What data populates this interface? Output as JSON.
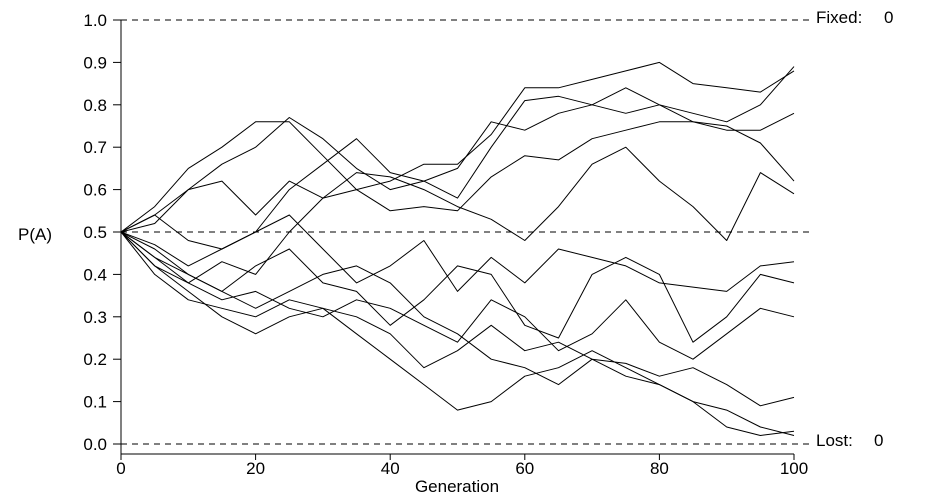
{
  "chart_data": {
    "type": "line",
    "title": "",
    "xlabel": "Generation",
    "ylabel": "P(A)",
    "xlim": [
      0,
      100
    ],
    "ylim": [
      0,
      1
    ],
    "x_ticks": [
      0,
      20,
      40,
      60,
      80,
      100
    ],
    "y_ticks": [
      0.0,
      0.1,
      0.2,
      0.3,
      0.4,
      0.5,
      0.6,
      0.7,
      0.8,
      0.9,
      1.0
    ],
    "x_tick_labels": [
      "0",
      "20",
      "40",
      "60",
      "80",
      "100"
    ],
    "y_tick_labels": [
      "0.0",
      "0.1",
      "0.2",
      "0.3",
      "0.4",
      "0.5",
      "0.6",
      "0.7",
      "0.8",
      "0.9",
      "1.0"
    ],
    "reference_lines": [
      0.0,
      0.5,
      1.0
    ],
    "grid": false,
    "annotations": {
      "fixed_label": "Fixed:",
      "fixed_count": "0",
      "lost_label": "Lost:",
      "lost_count": "0"
    },
    "series": [
      {
        "x": [
          0,
          5,
          10,
          15,
          20,
          25,
          30,
          35,
          40,
          45,
          50,
          55,
          60,
          65,
          70,
          75,
          80,
          85,
          90,
          95,
          100
        ],
        "values": [
          0.5,
          0.56,
          0.65,
          0.7,
          0.76,
          0.76,
          0.68,
          0.6,
          0.62,
          0.66,
          0.66,
          0.73,
          0.84,
          0.84,
          0.86,
          0.88,
          0.9,
          0.85,
          0.84,
          0.83,
          0.88
        ]
      },
      {
        "x": [
          0,
          5,
          10,
          15,
          20,
          25,
          30,
          35,
          40,
          45,
          50,
          55,
          60,
          65,
          70,
          75,
          80,
          85,
          90,
          95,
          100
        ],
        "values": [
          0.5,
          0.54,
          0.6,
          0.66,
          0.7,
          0.77,
          0.72,
          0.65,
          0.6,
          0.62,
          0.58,
          0.7,
          0.81,
          0.82,
          0.8,
          0.84,
          0.8,
          0.78,
          0.76,
          0.8,
          0.89
        ]
      },
      {
        "x": [
          0,
          5,
          10,
          15,
          20,
          25,
          30,
          35,
          40,
          45,
          50,
          55,
          60,
          65,
          70,
          75,
          80,
          85,
          90,
          95,
          100
        ],
        "values": [
          0.5,
          0.47,
          0.42,
          0.46,
          0.5,
          0.6,
          0.66,
          0.72,
          0.64,
          0.62,
          0.65,
          0.76,
          0.74,
          0.78,
          0.8,
          0.78,
          0.8,
          0.76,
          0.74,
          0.74,
          0.78
        ]
      },
      {
        "x": [
          0,
          5,
          10,
          15,
          20,
          25,
          30,
          35,
          40,
          45,
          50,
          55,
          60,
          65,
          70,
          75,
          80,
          85,
          90,
          95,
          100
        ],
        "values": [
          0.5,
          0.44,
          0.38,
          0.43,
          0.4,
          0.5,
          0.58,
          0.6,
          0.55,
          0.56,
          0.55,
          0.63,
          0.68,
          0.67,
          0.72,
          0.74,
          0.76,
          0.76,
          0.75,
          0.71,
          0.62
        ]
      },
      {
        "x": [
          0,
          5,
          10,
          15,
          20,
          25,
          30,
          35,
          40,
          45,
          50,
          55,
          60,
          65,
          70,
          75,
          80,
          85,
          90,
          95,
          100
        ],
        "values": [
          0.5,
          0.52,
          0.6,
          0.62,
          0.54,
          0.62,
          0.58,
          0.64,
          0.63,
          0.6,
          0.56,
          0.53,
          0.48,
          0.56,
          0.66,
          0.7,
          0.62,
          0.56,
          0.48,
          0.64,
          0.59
        ]
      },
      {
        "x": [
          0,
          5,
          10,
          15,
          20,
          25,
          30,
          35,
          40,
          45,
          50,
          55,
          60,
          65,
          70,
          75,
          80,
          85,
          90,
          95,
          100
        ],
        "values": [
          0.5,
          0.54,
          0.48,
          0.46,
          0.5,
          0.54,
          0.46,
          0.38,
          0.42,
          0.48,
          0.36,
          0.44,
          0.38,
          0.46,
          0.44,
          0.42,
          0.38,
          0.37,
          0.36,
          0.42,
          0.43
        ]
      },
      {
        "x": [
          0,
          5,
          10,
          15,
          20,
          25,
          30,
          35,
          40,
          45,
          50,
          55,
          60,
          65,
          70,
          75,
          80,
          85,
          90,
          95,
          100
        ],
        "values": [
          0.5,
          0.44,
          0.4,
          0.36,
          0.42,
          0.46,
          0.38,
          0.36,
          0.28,
          0.34,
          0.42,
          0.4,
          0.28,
          0.25,
          0.4,
          0.44,
          0.4,
          0.24,
          0.3,
          0.4,
          0.38
        ]
      },
      {
        "x": [
          0,
          5,
          10,
          15,
          20,
          25,
          30,
          35,
          40,
          45,
          50,
          55,
          60,
          65,
          70,
          75,
          80,
          85,
          90,
          95,
          100
        ],
        "values": [
          0.5,
          0.42,
          0.38,
          0.34,
          0.36,
          0.32,
          0.3,
          0.34,
          0.32,
          0.28,
          0.24,
          0.34,
          0.3,
          0.22,
          0.26,
          0.34,
          0.24,
          0.2,
          0.26,
          0.32,
          0.3
        ]
      },
      {
        "x": [
          0,
          5,
          10,
          15,
          20,
          25,
          30,
          35,
          40,
          45,
          50,
          55,
          60,
          65,
          70,
          75,
          80,
          85,
          90,
          95,
          100
        ],
        "values": [
          0.5,
          0.4,
          0.34,
          0.32,
          0.3,
          0.34,
          0.32,
          0.3,
          0.26,
          0.18,
          0.22,
          0.28,
          0.22,
          0.24,
          0.2,
          0.19,
          0.16,
          0.18,
          0.14,
          0.09,
          0.11
        ]
      },
      {
        "x": [
          0,
          5,
          10,
          15,
          20,
          25,
          30,
          35,
          40,
          45,
          50,
          55,
          60,
          65,
          70,
          75,
          80,
          85,
          90,
          95,
          100
        ],
        "values": [
          0.5,
          0.42,
          0.36,
          0.3,
          0.26,
          0.3,
          0.32,
          0.26,
          0.2,
          0.14,
          0.08,
          0.1,
          0.16,
          0.18,
          0.22,
          0.18,
          0.14,
          0.1,
          0.04,
          0.02,
          0.03
        ]
      },
      {
        "x": [
          0,
          5,
          10,
          15,
          20,
          25,
          30,
          35,
          40,
          45,
          50,
          55,
          60,
          65,
          70,
          75,
          80,
          85,
          90,
          95,
          100
        ],
        "values": [
          0.5,
          0.46,
          0.4,
          0.36,
          0.32,
          0.36,
          0.4,
          0.42,
          0.38,
          0.3,
          0.26,
          0.2,
          0.18,
          0.14,
          0.2,
          0.16,
          0.14,
          0.1,
          0.08,
          0.04,
          0.02
        ]
      }
    ]
  }
}
